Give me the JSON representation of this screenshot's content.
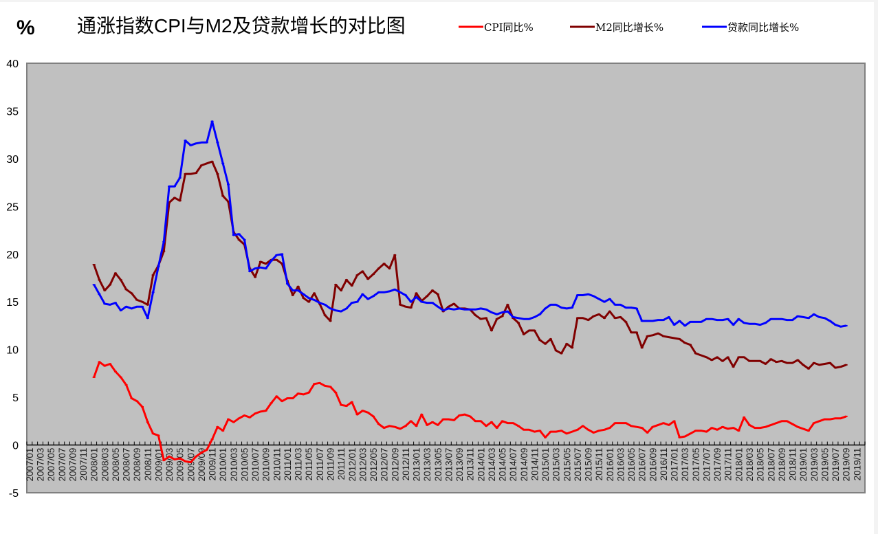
{
  "chart_data": {
    "type": "line",
    "title": "通涨指数CPI与M2及贷款增长的对比图",
    "ylabel": "%",
    "xlabel": "",
    "ylim": [
      -5,
      40
    ],
    "yticks": [
      "40",
      "35",
      "30",
      "25",
      "20",
      "15",
      "10",
      "5",
      "0",
      "-5"
    ],
    "ytick_values": [
      40,
      35,
      30,
      25,
      20,
      15,
      10,
      5,
      0,
      -5
    ],
    "x_range": [
      "2007/01",
      "2019/12"
    ],
    "x_start_month": "2007/01",
    "x_total_months": 156,
    "series_start": "2008/01",
    "series_start_offset_months": 12,
    "grid": false,
    "legend_position": "top-right",
    "xtick_labels": [
      "2007/01",
      "2007/03",
      "2007/05",
      "2007/07",
      "2007/09",
      "2007/11",
      "2008/01",
      "2008/03",
      "2008/05",
      "2008/07",
      "2008/09",
      "2008/11",
      "2009/01",
      "2009/03",
      "2009/05",
      "2009/07",
      "2009/09",
      "2009/11",
      "2010/01",
      "2010/03",
      "2010/05",
      "2010/07",
      "2010/09",
      "2010/11",
      "2011/01",
      "2011/03",
      "2011/05",
      "2011/07",
      "2011/09",
      "2011/11",
      "2012/01",
      "2012/03",
      "2012/05",
      "2012/07",
      "2012/09",
      "2012/11",
      "2013/01",
      "2013/03",
      "2013/05",
      "2013/07",
      "2013/09",
      "2013/11",
      "2014/01",
      "2014/03",
      "2014/05",
      "2014/07",
      "2014/09",
      "2014/11",
      "2015/01",
      "2015/03",
      "2015/05",
      "2015/07",
      "2015/09",
      "2015/11",
      "2016/01",
      "2016/03",
      "2016/05",
      "2016/07",
      "2016/09",
      "2016/11",
      "2017/01",
      "2017/03",
      "2017/05",
      "2017/07",
      "2017/09",
      "2017/11",
      "2018/01",
      "2018/03",
      "2018/05",
      "2018/07",
      "2018/09",
      "2018/11",
      "2019/01",
      "2019/03",
      "2019/05",
      "2019/07",
      "2019/09",
      "2019/11"
    ],
    "series": [
      {
        "name": "CPI同比%",
        "color": "#ff0000",
        "values": [
          7.1,
          8.7,
          8.3,
          8.5,
          7.7,
          7.1,
          6.3,
          4.9,
          4.6,
          4.0,
          2.4,
          1.2,
          1.0,
          -1.6,
          -1.2,
          -1.5,
          -1.4,
          -1.7,
          -1.8,
          -1.2,
          -0.8,
          -0.5,
          0.6,
          1.9,
          1.5,
          2.7,
          2.4,
          2.8,
          3.1,
          2.9,
          3.3,
          3.5,
          3.6,
          4.4,
          5.1,
          4.6,
          4.9,
          4.9,
          5.4,
          5.3,
          5.5,
          6.4,
          6.5,
          6.2,
          6.1,
          5.5,
          4.2,
          4.1,
          4.5,
          3.2,
          3.6,
          3.4,
          3.0,
          2.2,
          1.8,
          2.0,
          1.9,
          1.7,
          2.0,
          2.5,
          2.0,
          3.2,
          2.1,
          2.4,
          2.1,
          2.7,
          2.7,
          2.6,
          3.1,
          3.2,
          3.0,
          2.5,
          2.5,
          2.0,
          2.4,
          1.8,
          2.5,
          2.3,
          2.3,
          2.0,
          1.6,
          1.6,
          1.4,
          1.5,
          0.8,
          1.4,
          1.4,
          1.5,
          1.2,
          1.4,
          1.6,
          2.0,
          1.6,
          1.3,
          1.5,
          1.6,
          1.8,
          2.3,
          2.3,
          2.3,
          2.0,
          1.9,
          1.8,
          1.3,
          1.9,
          2.1,
          2.3,
          2.1,
          2.5,
          0.8,
          0.9,
          1.2,
          1.5,
          1.5,
          1.4,
          1.8,
          1.6,
          1.9,
          1.7,
          1.8,
          1.5,
          2.9,
          2.1,
          1.8,
          1.8,
          1.9,
          2.1,
          2.3,
          2.5,
          2.5,
          2.2,
          1.9,
          1.7,
          1.5,
          2.3,
          2.5,
          2.7,
          2.7,
          2.8,
          2.8,
          3.0
        ]
      },
      {
        "name": "M2同比增长%",
        "color": "#800000",
        "values": [
          18.9,
          17.3,
          16.2,
          16.8,
          18.0,
          17.3,
          16.3,
          15.9,
          15.2,
          15.0,
          14.7,
          17.8,
          18.8,
          20.3,
          25.4,
          25.9,
          25.6,
          28.4,
          28.4,
          28.5,
          29.3,
          29.5,
          29.7,
          28.4,
          26.1,
          25.5,
          22.3,
          21.5,
          21.0,
          18.5,
          17.6,
          19.2,
          19.0,
          19.4,
          19.4,
          19.0,
          17.2,
          15.7,
          16.6,
          15.4,
          15.0,
          15.9,
          14.8,
          13.6,
          13.0,
          16.8,
          16.2,
          17.3,
          16.7,
          17.8,
          18.2,
          17.4,
          17.9,
          18.5,
          19.0,
          18.5,
          19.9,
          14.7,
          14.5,
          14.4,
          15.9,
          15.1,
          15.6,
          16.2,
          15.8,
          14.0,
          14.5,
          14.8,
          14.3,
          14.3,
          14.2,
          13.6,
          13.2,
          13.3,
          12.0,
          13.2,
          13.5,
          14.7,
          13.3,
          12.8,
          11.6,
          12.0,
          12.0,
          11.0,
          10.6,
          11.1,
          9.9,
          9.6,
          10.6,
          10.2,
          13.3,
          13.3,
          13.1,
          13.5,
          13.7,
          13.3,
          14.0,
          13.3,
          13.4,
          12.9,
          11.8,
          11.8,
          10.2,
          11.4,
          11.5,
          11.7,
          11.4,
          11.3,
          11.2,
          11.1,
          10.7,
          10.5,
          9.6,
          9.4,
          9.2,
          8.9,
          9.2,
          8.8,
          9.2,
          8.2,
          9.2,
          9.2,
          8.8,
          8.8,
          8.8,
          8.5,
          9.0,
          8.7,
          8.8,
          8.6,
          8.6,
          8.9,
          8.4,
          8.0,
          8.6,
          8.4,
          8.5,
          8.6,
          8.1,
          8.2,
          8.4
        ]
      },
      {
        "name": "贷款同比增长%",
        "color": "#0000ff",
        "values": [
          16.8,
          15.8,
          14.8,
          14.7,
          14.9,
          14.1,
          14.5,
          14.3,
          14.5,
          14.5,
          13.3,
          16.0,
          18.7,
          21.3,
          27.1,
          27.1,
          28.0,
          31.9,
          31.4,
          31.6,
          31.7,
          31.7,
          33.9,
          31.7,
          29.5,
          27.3,
          22.0,
          22.1,
          21.5,
          18.2,
          18.5,
          18.6,
          18.5,
          19.3,
          19.9,
          20.0,
          16.9,
          16.2,
          16.2,
          15.8,
          15.4,
          15.2,
          14.9,
          14.7,
          14.3,
          14.1,
          14.0,
          14.3,
          14.9,
          15.0,
          15.8,
          15.3,
          15.6,
          16.0,
          16.0,
          16.1,
          16.3,
          16.0,
          15.7,
          15.0,
          15.5,
          15.0,
          14.9,
          14.9,
          14.5,
          14.1,
          14.3,
          14.2,
          14.3,
          14.2,
          14.2,
          14.2,
          14.3,
          14.2,
          13.9,
          13.7,
          13.9,
          14.0,
          13.4,
          13.3,
          13.2,
          13.2,
          13.4,
          13.7,
          14.3,
          14.7,
          14.7,
          14.4,
          14.3,
          14.4,
          15.7,
          15.7,
          15.8,
          15.6,
          15.3,
          15.0,
          15.3,
          14.7,
          14.7,
          14.4,
          14.4,
          14.3,
          13.0,
          13.0,
          13.0,
          13.1,
          13.1,
          13.4,
          12.6,
          13.0,
          12.5,
          12.9,
          12.9,
          12.9,
          13.2,
          13.2,
          13.1,
          13.1,
          13.2,
          12.6,
          13.2,
          12.8,
          12.7,
          12.7,
          12.6,
          12.8,
          13.2,
          13.2,
          13.2,
          13.1,
          13.1,
          13.5,
          13.4,
          13.3,
          13.7,
          13.4,
          13.3,
          13.0,
          12.6,
          12.4,
          12.5
        ]
      }
    ]
  },
  "colors": {
    "plot_background": "#c0c0c0",
    "plot_border": "#808080"
  }
}
